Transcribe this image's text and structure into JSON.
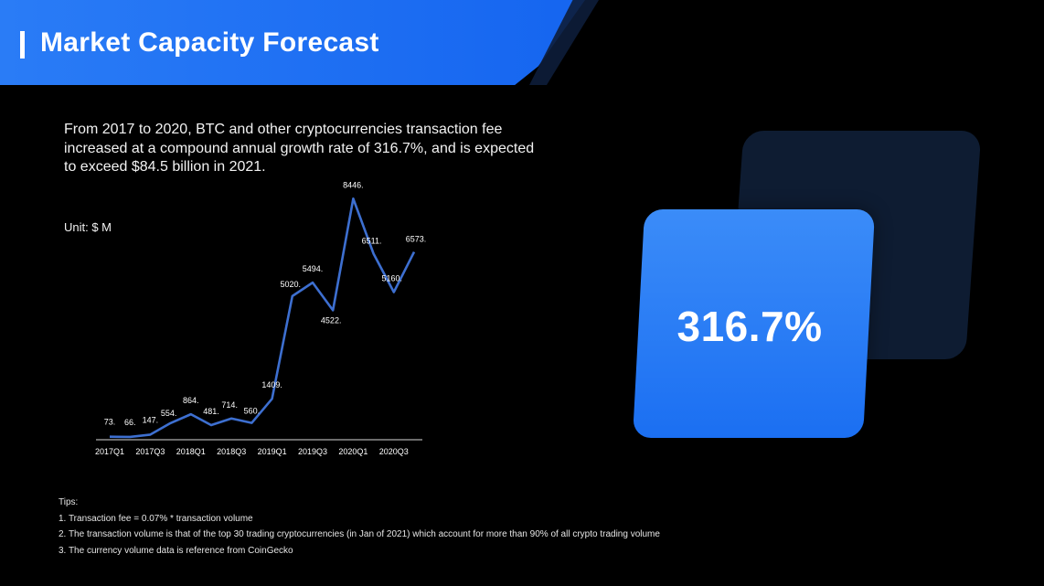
{
  "header": {
    "title": "Market Capacity Forecast"
  },
  "description": "From 2017 to 2020, BTC and other cryptocurrencies transaction fee increased at a compound annual growth rate of 316.7%, and is expected to exceed $84.5 billion in 2021.",
  "unit_label": "Unit: $ M",
  "highlight": {
    "value": "316.7%"
  },
  "tips": {
    "heading": "Tips:",
    "items": [
      "1. Transaction fee = 0.07% * transaction volume",
      "2. The transaction volume is that of the top 30 trading cryptocurrencies (in Jan of 2021) which account for more than 90% of all crypto trading volume",
      "3. The currency volume data is reference from CoinGecko"
    ]
  },
  "colors": {
    "accent": "#1f6ff2",
    "line": "#3d6fd0"
  },
  "chart_data": {
    "type": "line",
    "categories": [
      "2017Q1",
      "2017Q2",
      "2017Q3",
      "2017Q4",
      "2018Q1",
      "2018Q2",
      "2018Q3",
      "2018Q4",
      "2019Q1",
      "2019Q2",
      "2019Q3",
      "2019Q4",
      "2020Q1",
      "2020Q2",
      "2020Q3",
      "2020Q4"
    ],
    "tick_labels": [
      "2017Q1",
      "2017Q3",
      "2018Q1",
      "2018Q3",
      "2019Q1",
      "2019Q3",
      "2020Q1",
      "2020Q3"
    ],
    "series": [
      {
        "values": [
          73,
          66,
          147,
          554,
          864,
          481,
          714,
          560,
          1409,
          5020,
          5494,
          4522,
          8446,
          6511,
          5160,
          6573
        ],
        "labels": [
          "73.",
          "66.",
          "147.",
          "554.",
          "864.",
          "481.",
          "714.",
          "560.",
          "1409.",
          "5020.",
          "5494.",
          "4522.",
          "8446.",
          "6511.",
          "5160.",
          "6573."
        ]
      }
    ],
    "ylim": [
      0,
      9000
    ],
    "grid": false,
    "legend": "none"
  }
}
